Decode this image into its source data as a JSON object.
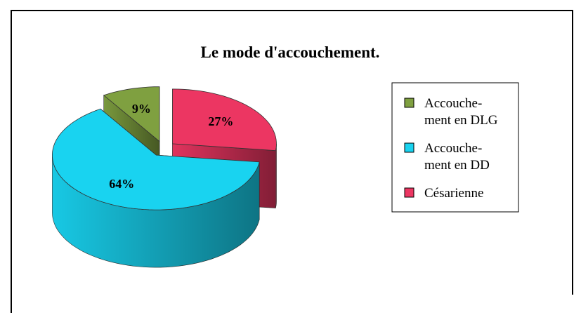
{
  "chart_data": {
    "type": "pie3d",
    "title": "Le mode d'accouchement.",
    "categories": [
      "Accouche-\nment en DLG",
      "Accouche-\nment en DD",
      "Césarienne"
    ],
    "values": [
      9,
      64,
      27
    ],
    "value_labels": [
      "9%",
      "64%",
      "27%"
    ],
    "colors": [
      "#7fa040",
      "#19d3f0",
      "#ec3662"
    ],
    "legend": "right"
  }
}
